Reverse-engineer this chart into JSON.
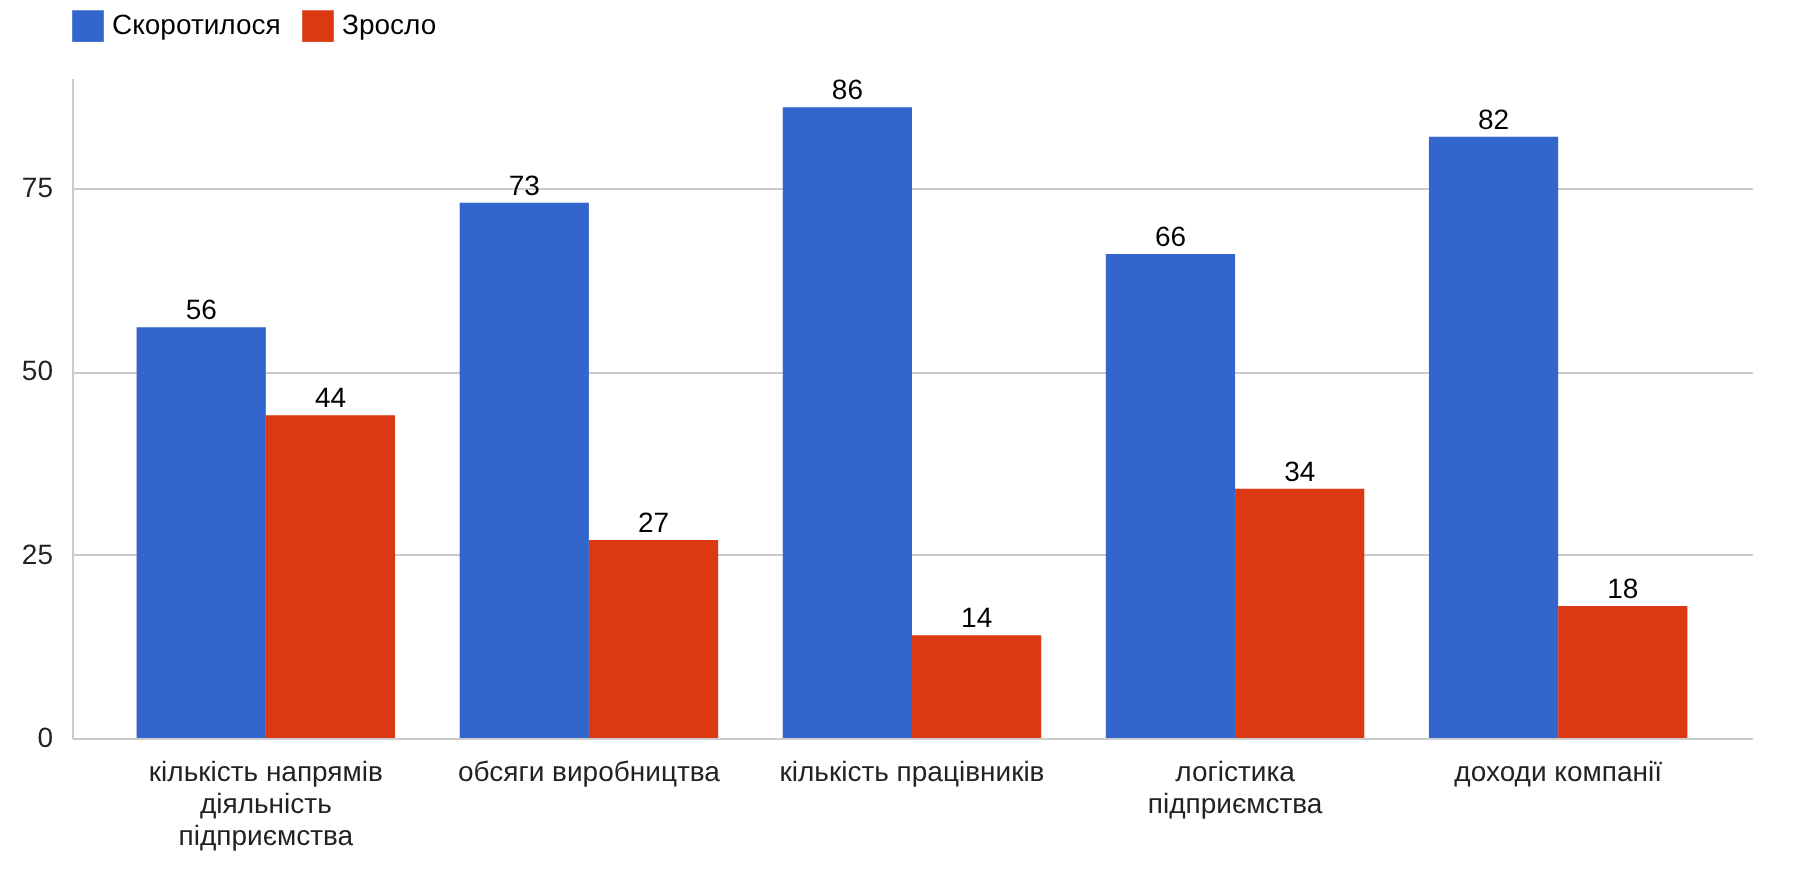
{
  "chart_data": {
    "type": "bar",
    "categories": [
      "кількість напрямів діяльність підприємства",
      "обсяги виробництва",
      "кількість працівників",
      "логістика підприємства",
      "доходи компанії"
    ],
    "series": [
      {
        "name": "Скоротилося",
        "color": "#3366cc",
        "values": [
          56,
          73,
          86,
          66,
          82
        ]
      },
      {
        "name": "Зросло",
        "color": "#dc3912",
        "values": [
          44,
          27,
          14,
          34,
          18
        ]
      }
    ],
    "ylim": [
      0,
      90
    ],
    "yticks": [
      0,
      25,
      50,
      75
    ],
    "grid": "y",
    "legend": "top left",
    "data_labels": true
  }
}
